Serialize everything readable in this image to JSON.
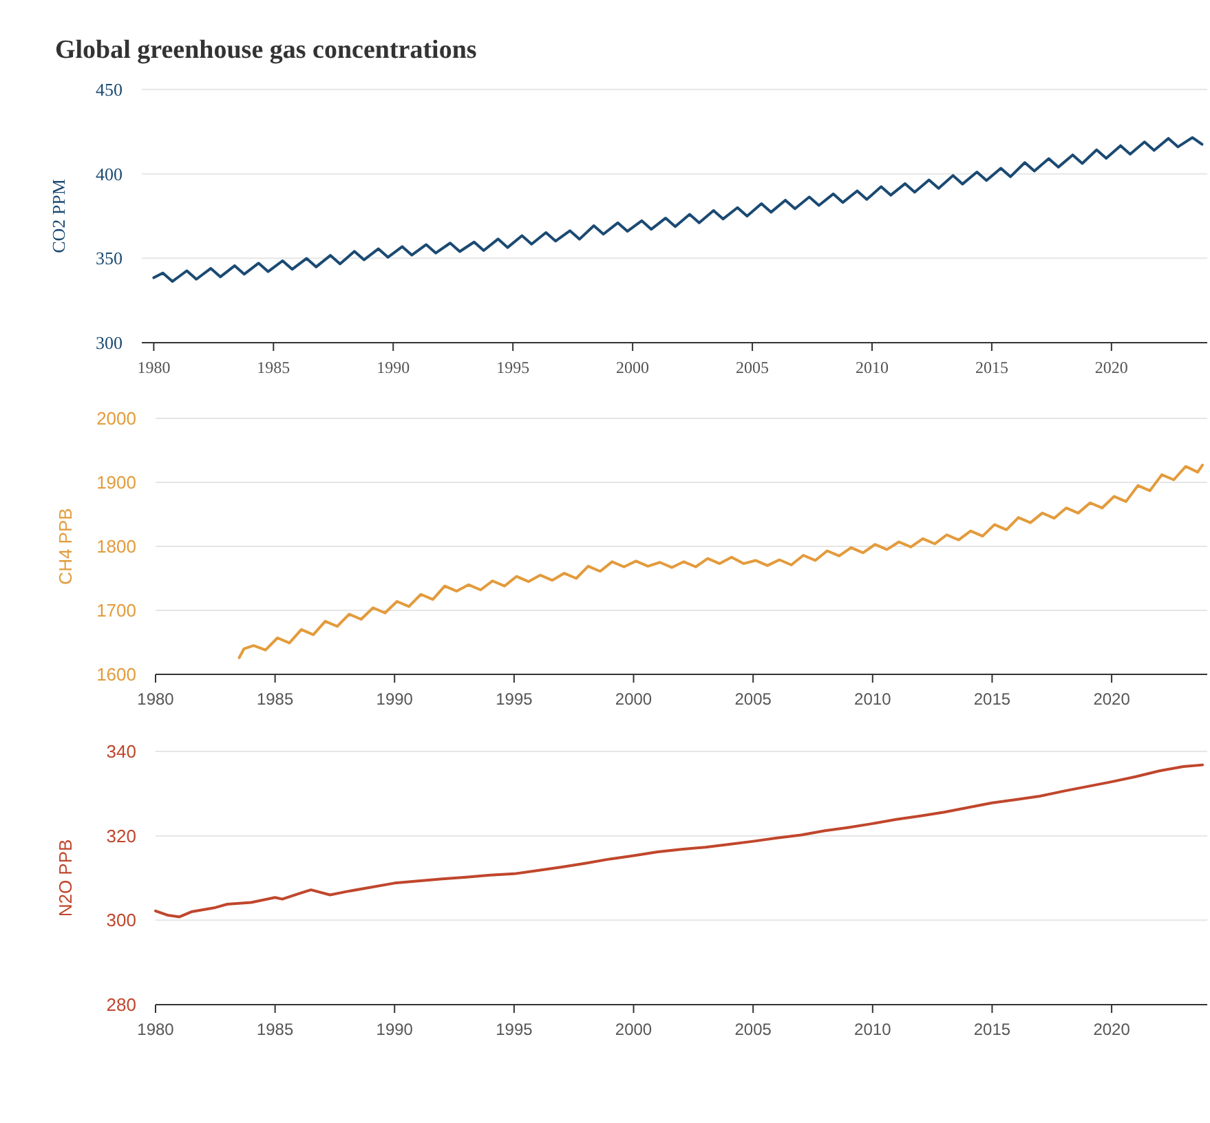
{
  "chart_data": [
    {
      "type": "line",
      "title": "Global greenhouse gas concentrations",
      "ylabel": "CO2 PPM",
      "xlim": [
        1979.5,
        2024
      ],
      "xticks": [
        1980,
        1985,
        1990,
        1995,
        2000,
        2005,
        2010,
        2015,
        2020
      ],
      "ylim": [
        300,
        450
      ],
      "yticks": [
        300,
        350,
        400,
        450
      ],
      "grid": "y",
      "x": [
        1980.0,
        1980.38,
        1980.78,
        1981.38,
        1981.78,
        1982.38,
        1982.78,
        1983.38,
        1983.78,
        1984.38,
        1984.78,
        1985.38,
        1985.78,
        1986.38,
        1986.78,
        1987.38,
        1987.78,
        1988.38,
        1988.78,
        1989.38,
        1989.78,
        1990.38,
        1990.78,
        1991.38,
        1991.78,
        1992.38,
        1992.78,
        1993.38,
        1993.78,
        1994.38,
        1994.78,
        1995.38,
        1995.78,
        1996.38,
        1996.78,
        1997.38,
        1997.78,
        1998.38,
        1998.78,
        1999.38,
        1999.78,
        2000.38,
        2000.78,
        2001.38,
        2001.78,
        2002.38,
        2002.78,
        2003.38,
        2003.78,
        2004.38,
        2004.78,
        2005.38,
        2005.78,
        2006.38,
        2006.78,
        2007.38,
        2007.78,
        2008.38,
        2008.78,
        2009.38,
        2009.78,
        2010.38,
        2010.78,
        2011.38,
        2011.78,
        2012.38,
        2012.78,
        2013.38,
        2013.78,
        2014.38,
        2014.78,
        2015.38,
        2015.78,
        2016.38,
        2016.78,
        2017.38,
        2017.78,
        2018.38,
        2018.78,
        2019.38,
        2019.78,
        2020.38,
        2020.78,
        2021.38,
        2021.78,
        2022.38,
        2022.78,
        2023.38,
        2023.78
      ],
      "series": [
        {
          "color": "#1b4a72",
          "values": [
            338.5,
            341.3,
            336.3,
            342.6,
            337.6,
            344.0,
            339.0,
            345.6,
            340.6,
            347.1,
            342.1,
            348.5,
            343.5,
            349.9,
            344.9,
            351.7,
            346.7,
            354.1,
            349.1,
            355.6,
            350.6,
            356.9,
            351.9,
            358.1,
            353.1,
            359.0,
            354.0,
            359.6,
            354.6,
            361.4,
            356.4,
            363.4,
            358.4,
            365.2,
            360.2,
            366.3,
            361.3,
            369.3,
            364.3,
            371.0,
            366.0,
            372.2,
            367.2,
            373.8,
            368.8,
            376.0,
            371.0,
            378.3,
            373.3,
            380.0,
            375.0,
            382.3,
            377.3,
            384.4,
            379.4,
            386.3,
            381.3,
            388.1,
            383.1,
            389.9,
            384.9,
            392.4,
            387.4,
            394.2,
            389.2,
            396.4,
            391.4,
            399.0,
            394.0,
            401.1,
            396.1,
            403.3,
            398.3,
            406.7,
            401.7,
            409.0,
            404.0,
            411.2,
            406.2,
            414.2,
            409.2,
            416.7,
            411.7,
            418.9,
            413.9,
            421.0,
            416.0,
            421.5,
            417.5
          ]
        }
      ]
    },
    {
      "type": "line",
      "ylabel": "CH4 PPB",
      "xlim": [
        1980,
        2024
      ],
      "xticks": [
        1980,
        1985,
        1990,
        1995,
        2000,
        2005,
        2010,
        2015,
        2020
      ],
      "ylim": [
        1600,
        2000
      ],
      "yticks": [
        1600,
        1700,
        1800,
        1900,
        2000
      ],
      "grid": "y",
      "x": [
        1983.5,
        1983.7,
        1984.1,
        1984.6,
        1985.1,
        1985.6,
        1986.1,
        1986.6,
        1987.1,
        1987.6,
        1988.1,
        1988.6,
        1989.1,
        1989.6,
        1990.1,
        1990.6,
        1991.1,
        1991.6,
        1992.1,
        1992.6,
        1993.1,
        1993.6,
        1994.1,
        1994.6,
        1995.1,
        1995.6,
        1996.1,
        1996.6,
        1997.1,
        1997.6,
        1998.1,
        1998.6,
        1999.1,
        1999.6,
        2000.1,
        2000.6,
        2001.1,
        2001.6,
        2002.1,
        2002.6,
        2003.1,
        2003.6,
        2004.1,
        2004.6,
        2005.1,
        2005.6,
        2006.1,
        2006.6,
        2007.1,
        2007.6,
        2008.1,
        2008.6,
        2009.1,
        2009.6,
        2010.1,
        2010.6,
        2011.1,
        2011.6,
        2012.1,
        2012.6,
        2013.1,
        2013.6,
        2014.1,
        2014.6,
        2015.1,
        2015.6,
        2016.1,
        2016.6,
        2017.1,
        2017.6,
        2018.1,
        2018.6,
        2019.1,
        2019.6,
        2020.1,
        2020.6,
        2021.1,
        2021.6,
        2022.1,
        2022.6,
        2023.1,
        2023.6,
        2023.8
      ],
      "series": [
        {
          "color": "#e39b3c",
          "values": [
            1626,
            1640,
            1645,
            1638,
            1657,
            1649,
            1670,
            1662,
            1683,
            1675,
            1694,
            1686,
            1704,
            1696,
            1714,
            1706,
            1725,
            1717,
            1738,
            1730,
            1740,
            1732,
            1746,
            1738,
            1753,
            1745,
            1755,
            1747,
            1758,
            1750,
            1769,
            1761,
            1776,
            1768,
            1777,
            1769,
            1775,
            1767,
            1776,
            1768,
            1781,
            1773,
            1783,
            1773,
            1778,
            1770,
            1779,
            1771,
            1786,
            1778,
            1793,
            1785,
            1798,
            1790,
            1803,
            1795,
            1807,
            1799,
            1812,
            1804,
            1818,
            1810,
            1824,
            1816,
            1834,
            1826,
            1845,
            1837,
            1852,
            1844,
            1860,
            1852,
            1868,
            1860,
            1878,
            1870,
            1895,
            1887,
            1912,
            1904,
            1925,
            1916,
            1927
          ]
        }
      ]
    },
    {
      "type": "line",
      "ylabel": "N2O PPB",
      "xlim": [
        1980,
        2024
      ],
      "xticks": [
        1980,
        1985,
        1990,
        1995,
        2000,
        2005,
        2010,
        2015,
        2020
      ],
      "ylim": [
        280,
        340
      ],
      "yticks": [
        280,
        300,
        320,
        340
      ],
      "grid": "y",
      "x": [
        1980.0,
        1980.5,
        1981.0,
        1981.5,
        1982.0,
        1982.5,
        1983.0,
        1984.0,
        1985.0,
        1985.3,
        1986.0,
        1986.5,
        1987.3,
        1988.0,
        1989.0,
        1990.0,
        1991.0,
        1992.0,
        1993.0,
        1994.0,
        1995.0,
        1996.0,
        1997.0,
        1998.0,
        1999.0,
        2000.0,
        2001.0,
        2002.0,
        2003.0,
        2004.0,
        2005.0,
        2006.0,
        2007.0,
        2008.0,
        2009.0,
        2010.0,
        2011.0,
        2012.0,
        2013.0,
        2014.0,
        2015.0,
        2016.0,
        2017.0,
        2018.0,
        2019.0,
        2020.0,
        2021.0,
        2022.0,
        2023.0,
        2023.8
      ],
      "series": [
        {
          "color": "#c0462c",
          "values": [
            302.2,
            301.2,
            300.8,
            302.0,
            302.5,
            303.0,
            303.8,
            304.2,
            305.4,
            305.0,
            306.3,
            307.2,
            306.0,
            306.8,
            307.8,
            308.8,
            309.3,
            309.8,
            310.2,
            310.7,
            311.0,
            311.8,
            312.6,
            313.5,
            314.5,
            315.3,
            316.2,
            316.8,
            317.3,
            318.0,
            318.7,
            319.5,
            320.2,
            321.2,
            322.0,
            322.9,
            323.9,
            324.7,
            325.6,
            326.7,
            327.8,
            328.6,
            329.4,
            330.6,
            331.7,
            332.8,
            334.0,
            335.4,
            336.4,
            336.8
          ]
        }
      ]
    }
  ]
}
